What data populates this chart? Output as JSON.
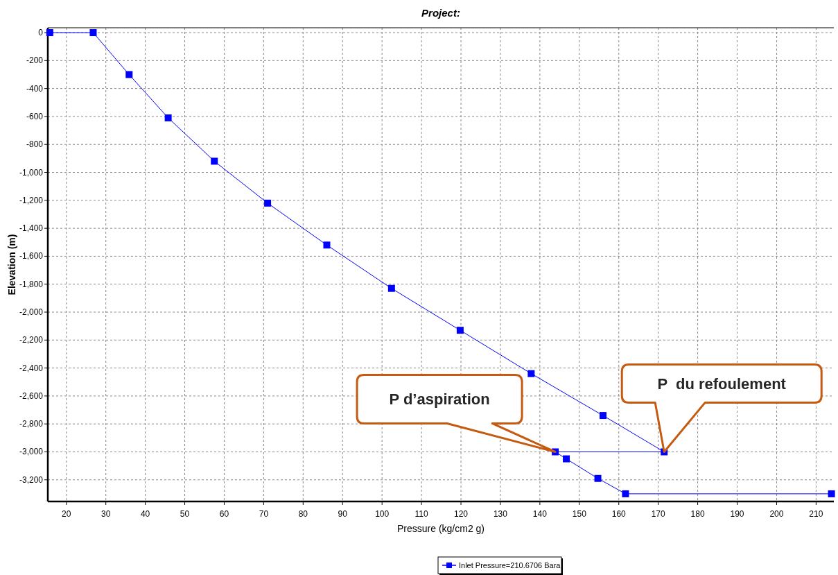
{
  "chart_data": {
    "type": "line",
    "title": "Project:",
    "xlabel": "Pressure (kg/cm2 g)",
    "ylabel": "Elevation (m)",
    "series": [
      {
        "name": "Inlet Pressure=210.6706 Bara",
        "color": "#0000ff",
        "x": [
          15.8,
          26.8,
          35.9,
          45.8,
          57.5,
          71.0,
          86.0,
          102.4,
          119.8,
          137.8,
          156.0,
          171.5,
          143.9,
          146.7,
          154.7,
          161.7,
          213.9
        ],
        "values": [
          0,
          0,
          -300,
          -610,
          -920,
          -1220,
          -1520,
          -1830,
          -2130,
          -2440,
          -2740,
          -3000,
          -3000,
          -3050,
          -3190,
          -3300,
          -3300
        ]
      }
    ],
    "xlim": [
      15.3,
      214.5
    ],
    "ylim": [
      -3355,
      35
    ],
    "xticks": [
      20,
      30,
      40,
      50,
      60,
      70,
      80,
      90,
      100,
      110,
      120,
      130,
      140,
      150,
      160,
      170,
      180,
      190,
      200,
      210
    ],
    "yticks": [
      0,
      -200,
      -400,
      -600,
      -800,
      {
        "value": -1000,
        "label": "-1,000"
      },
      {
        "value": -1200,
        "label": "-1,200"
      },
      {
        "value": -1400,
        "label": "-1,400"
      },
      {
        "value": -1600,
        "label": "-1,600"
      },
      {
        "value": -1800,
        "label": "-1,800"
      },
      {
        "value": -2000,
        "label": "-2,000"
      },
      {
        "value": -2200,
        "label": "-2,200"
      },
      {
        "value": -2400,
        "label": "-2,400"
      },
      {
        "value": -2600,
        "label": "-2,600"
      },
      {
        "value": -2800,
        "label": "-2,800"
      },
      {
        "value": -3000,
        "label": "-3,000"
      },
      {
        "value": -3200,
        "label": "-3,200"
      }
    ],
    "annotations": [
      "P d’aspiration",
      "P  du refoulement"
    ],
    "grid": true,
    "legend": "bottom",
    "marker": "square",
    "line_style": "solid"
  }
}
